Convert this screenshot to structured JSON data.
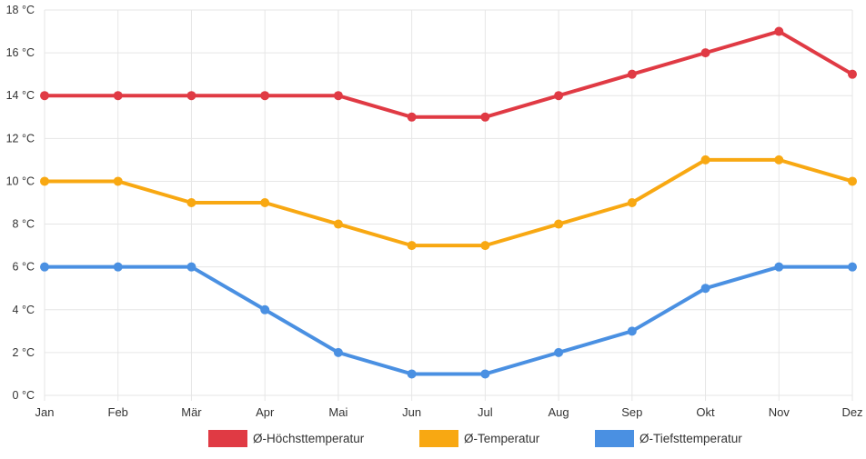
{
  "chart_data": {
    "type": "line",
    "categories": [
      "Jan",
      "Feb",
      "Mär",
      "Apr",
      "Mai",
      "Jun",
      "Jul",
      "Aug",
      "Sep",
      "Okt",
      "Nov",
      "Dez"
    ],
    "y_ticks": [
      "0 °C",
      "2 °C",
      "4 °C",
      "6 °C",
      "8 °C",
      "10 °C",
      "12 °C",
      "14 °C",
      "16 °C",
      "18 °C"
    ],
    "ylim": [
      0,
      18
    ],
    "grid": true,
    "legend_position": "bottom",
    "series": [
      {
        "name": "Ø-Höchsttemperatur",
        "color": "#e03a44",
        "values": [
          14,
          14,
          14,
          14,
          14,
          13,
          13,
          14,
          15,
          16,
          17,
          15
        ]
      },
      {
        "name": "Ø-Temperatur",
        "color": "#f8a812",
        "values": [
          10,
          10,
          9,
          9,
          8,
          7,
          7,
          8,
          9,
          11,
          11,
          10
        ]
      },
      {
        "name": "Ø-Tiefsttemperatur",
        "color": "#4a90e2",
        "values": [
          6,
          6,
          6,
          4,
          2,
          1,
          1,
          2,
          3,
          5,
          6,
          6
        ]
      }
    ]
  }
}
